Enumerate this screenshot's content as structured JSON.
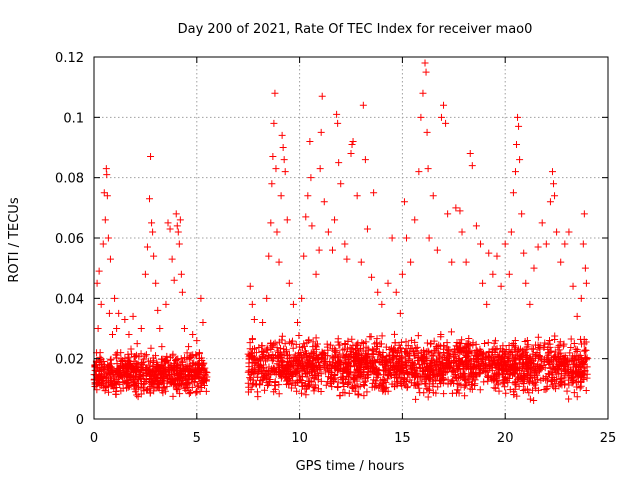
{
  "chart_data": {
    "type": "scatter",
    "title": "Day 200 of 2021, Rate Of TEC Index for receiver mao0",
    "xlabel": "GPS time / hours",
    "ylabel": "ROTI / TECUs",
    "xlim": [
      0,
      25
    ],
    "ylim": [
      0,
      0.12
    ],
    "x_ticks": [
      0,
      5,
      10,
      15,
      20,
      25
    ],
    "x_tick_labels": [
      "0",
      "5",
      "10",
      "15",
      "20",
      "25"
    ],
    "y_ticks": [
      0,
      0.02,
      0.04,
      0.06,
      0.08,
      0.1,
      0.12
    ],
    "y_tick_labels": [
      "0",
      "0.02",
      "0.04",
      "0.06",
      "0.08",
      "0.1",
      "0.12"
    ],
    "grid": true,
    "marker": "plus",
    "marker_color": "#ff0000",
    "series": [
      {
        "points": [
          [
            0.05,
            0.012
          ],
          [
            0.1,
            0.018
          ],
          [
            0.15,
            0.045
          ],
          [
            0.2,
            0.03
          ],
          [
            0.25,
            0.049
          ],
          [
            0.3,
            0.022
          ],
          [
            0.35,
            0.038
          ],
          [
            0.4,
            0.014
          ],
          [
            0.45,
            0.058
          ],
          [
            0.5,
            0.075
          ],
          [
            0.55,
            0.066
          ],
          [
            0.6,
            0.083
          ],
          [
            0.62,
            0.081
          ],
          [
            0.65,
            0.074
          ],
          [
            0.7,
            0.06
          ],
          [
            0.75,
            0.035
          ],
          [
            0.8,
            0.053
          ],
          [
            0.9,
            0.028
          ],
          [
            1.0,
            0.04
          ],
          [
            1.1,
            0.03
          ],
          [
            1.2,
            0.035
          ],
          [
            1.3,
            0.022
          ],
          [
            1.5,
            0.033
          ],
          [
            1.7,
            0.028
          ],
          [
            1.9,
            0.034
          ],
          [
            2.1,
            0.025
          ],
          [
            2.3,
            0.03
          ],
          [
            2.5,
            0.048
          ],
          [
            2.6,
            0.057
          ],
          [
            2.7,
            0.073
          ],
          [
            2.75,
            0.087
          ],
          [
            2.8,
            0.065
          ],
          [
            2.85,
            0.062
          ],
          [
            2.9,
            0.054
          ],
          [
            3.0,
            0.045
          ],
          [
            3.1,
            0.036
          ],
          [
            3.2,
            0.03
          ],
          [
            3.3,
            0.024
          ],
          [
            3.5,
            0.038
          ],
          [
            3.6,
            0.065
          ],
          [
            3.7,
            0.063
          ],
          [
            3.8,
            0.053
          ],
          [
            3.9,
            0.046
          ],
          [
            4.0,
            0.068
          ],
          [
            4.05,
            0.064
          ],
          [
            4.1,
            0.062
          ],
          [
            4.15,
            0.058
          ],
          [
            4.2,
            0.066
          ],
          [
            4.25,
            0.048
          ],
          [
            4.3,
            0.042
          ],
          [
            4.4,
            0.03
          ],
          [
            4.6,
            0.024
          ],
          [
            4.8,
            0.028
          ],
          [
            5.0,
            0.026
          ],
          [
            5.2,
            0.04
          ],
          [
            5.3,
            0.032
          ],
          [
            7.6,
            0.044
          ],
          [
            7.7,
            0.038
          ],
          [
            7.8,
            0.033
          ],
          [
            7.9,
            0.022
          ],
          [
            8.0,
            0.018
          ],
          [
            8.2,
            0.032
          ],
          [
            8.4,
            0.04
          ],
          [
            8.5,
            0.054
          ],
          [
            8.6,
            0.065
          ],
          [
            8.65,
            0.078
          ],
          [
            8.7,
            0.087
          ],
          [
            8.75,
            0.098
          ],
          [
            8.8,
            0.108
          ],
          [
            8.85,
            0.083
          ],
          [
            8.9,
            0.062
          ],
          [
            9.0,
            0.052
          ],
          [
            9.1,
            0.074
          ],
          [
            9.15,
            0.094
          ],
          [
            9.2,
            0.09
          ],
          [
            9.25,
            0.086
          ],
          [
            9.3,
            0.082
          ],
          [
            9.4,
            0.066
          ],
          [
            9.5,
            0.045
          ],
          [
            9.7,
            0.038
          ],
          [
            9.9,
            0.032
          ],
          [
            10.1,
            0.04
          ],
          [
            10.2,
            0.054
          ],
          [
            10.3,
            0.067
          ],
          [
            10.4,
            0.074
          ],
          [
            10.5,
            0.092
          ],
          [
            10.55,
            0.08
          ],
          [
            10.6,
            0.064
          ],
          [
            10.8,
            0.048
          ],
          [
            10.95,
            0.056
          ],
          [
            11.0,
            0.083
          ],
          [
            11.05,
            0.095
          ],
          [
            11.1,
            0.107
          ],
          [
            11.2,
            0.072
          ],
          [
            11.4,
            0.062
          ],
          [
            11.6,
            0.056
          ],
          [
            11.7,
            0.066
          ],
          [
            11.8,
            0.101
          ],
          [
            11.85,
            0.098
          ],
          [
            11.9,
            0.085
          ],
          [
            12.0,
            0.078
          ],
          [
            12.2,
            0.058
          ],
          [
            12.3,
            0.053
          ],
          [
            12.5,
            0.088
          ],
          [
            12.55,
            0.091
          ],
          [
            12.6,
            0.092
          ],
          [
            12.8,
            0.074
          ],
          [
            13.0,
            0.052
          ],
          [
            13.1,
            0.104
          ],
          [
            13.2,
            0.086
          ],
          [
            13.3,
            0.063
          ],
          [
            13.5,
            0.047
          ],
          [
            13.6,
            0.075
          ],
          [
            13.8,
            0.042
          ],
          [
            14.0,
            0.038
          ],
          [
            14.3,
            0.045
          ],
          [
            14.5,
            0.06
          ],
          [
            14.7,
            0.042
          ],
          [
            14.9,
            0.035
          ],
          [
            15.0,
            0.048
          ],
          [
            15.1,
            0.072
          ],
          [
            15.2,
            0.06
          ],
          [
            15.4,
            0.052
          ],
          [
            15.6,
            0.066
          ],
          [
            15.8,
            0.082
          ],
          [
            15.9,
            0.1
          ],
          [
            16.0,
            0.108
          ],
          [
            16.1,
            0.118
          ],
          [
            16.15,
            0.115
          ],
          [
            16.2,
            0.095
          ],
          [
            16.25,
            0.083
          ],
          [
            16.3,
            0.06
          ],
          [
            16.5,
            0.074
          ],
          [
            16.7,
            0.056
          ],
          [
            16.9,
            0.1
          ],
          [
            17.0,
            0.104
          ],
          [
            17.1,
            0.098
          ],
          [
            17.2,
            0.068
          ],
          [
            17.4,
            0.052
          ],
          [
            17.6,
            0.07
          ],
          [
            17.8,
            0.069
          ],
          [
            17.9,
            0.062
          ],
          [
            18.1,
            0.052
          ],
          [
            18.3,
            0.088
          ],
          [
            18.4,
            0.084
          ],
          [
            18.6,
            0.064
          ],
          [
            18.8,
            0.058
          ],
          [
            18.9,
            0.045
          ],
          [
            19.1,
            0.038
          ],
          [
            19.2,
            0.055
          ],
          [
            19.4,
            0.048
          ],
          [
            19.6,
            0.054
          ],
          [
            19.8,
            0.044
          ],
          [
            20.0,
            0.058
          ],
          [
            20.2,
            0.048
          ],
          [
            20.3,
            0.062
          ],
          [
            20.4,
            0.075
          ],
          [
            20.5,
            0.082
          ],
          [
            20.55,
            0.091
          ],
          [
            20.6,
            0.1
          ],
          [
            20.65,
            0.097
          ],
          [
            20.7,
            0.086
          ],
          [
            20.8,
            0.068
          ],
          [
            20.9,
            0.055
          ],
          [
            21.0,
            0.045
          ],
          [
            21.2,
            0.038
          ],
          [
            21.4,
            0.05
          ],
          [
            21.6,
            0.057
          ],
          [
            21.8,
            0.065
          ],
          [
            22.0,
            0.058
          ],
          [
            22.2,
            0.072
          ],
          [
            22.3,
            0.082
          ],
          [
            22.35,
            0.078
          ],
          [
            22.4,
            0.074
          ],
          [
            22.5,
            0.062
          ],
          [
            22.7,
            0.052
          ],
          [
            22.9,
            0.058
          ],
          [
            23.1,
            0.062
          ],
          [
            23.3,
            0.044
          ],
          [
            23.5,
            0.034
          ],
          [
            23.7,
            0.04
          ],
          [
            23.8,
            0.058
          ],
          [
            23.85,
            0.068
          ],
          [
            23.9,
            0.05
          ],
          [
            23.95,
            0.045
          ]
        ]
      }
    ],
    "dense_band": [
      {
        "x": [
          0.0,
          5.5
        ],
        "y": [
          0.006,
          0.024
        ]
      },
      {
        "x": [
          7.5,
          24.0
        ],
        "y": [
          0.005,
          0.03
        ]
      }
    ]
  }
}
